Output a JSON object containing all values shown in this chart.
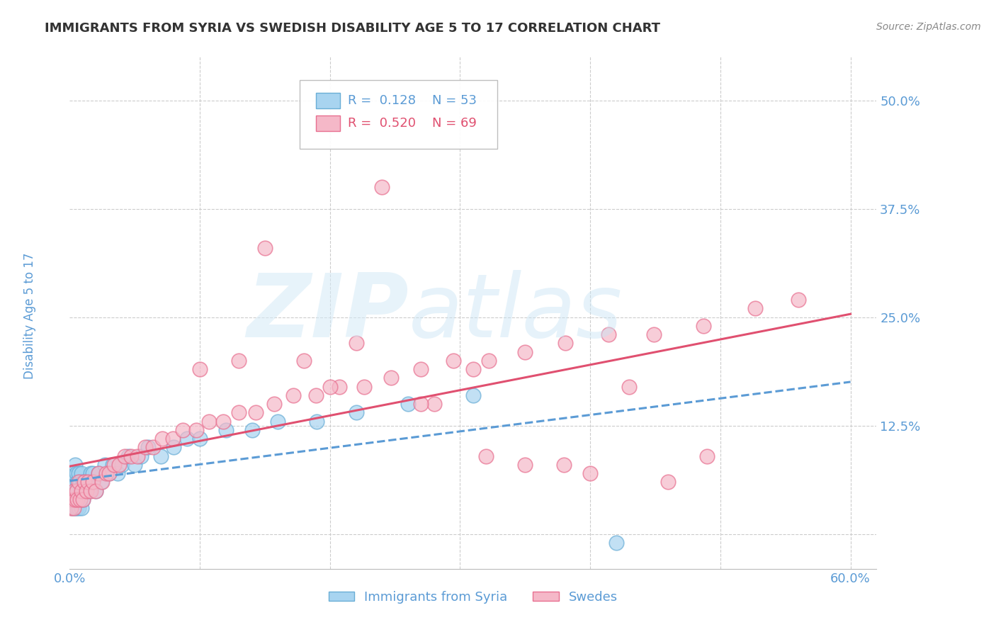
{
  "title": "IMMIGRANTS FROM SYRIA VS SWEDISH DISABILITY AGE 5 TO 17 CORRELATION CHART",
  "source": "Source: ZipAtlas.com",
  "xlabel": "",
  "ylabel": "Disability Age 5 to 17",
  "xlim": [
    0.0,
    0.62
  ],
  "ylim": [
    -0.04,
    0.55
  ],
  "xticks": [
    0.0,
    0.1,
    0.2,
    0.3,
    0.4,
    0.5,
    0.6
  ],
  "xticklabels": [
    "0.0%",
    "",
    "",
    "",
    "",
    "",
    "60.0%"
  ],
  "yticks": [
    0.0,
    0.125,
    0.25,
    0.375,
    0.5
  ],
  "yticklabels": [
    "",
    "12.5%",
    "25.0%",
    "37.5%",
    "50.0%"
  ],
  "legend_r_blue": "0.128",
  "legend_n_blue": "53",
  "legend_r_pink": "0.520",
  "legend_n_pink": "69",
  "blue_scatter_color": "#A8D4F0",
  "blue_edge_color": "#6AAED6",
  "pink_scatter_color": "#F5B8C8",
  "pink_edge_color": "#E87090",
  "blue_line_color": "#5B9BD5",
  "pink_line_color": "#E05070",
  "axis_label_color": "#5B9BD5",
  "grid_color": "#CCCCCC",
  "title_color": "#333333",
  "blue_scatter_x": [
    0.001,
    0.002,
    0.002,
    0.003,
    0.003,
    0.004,
    0.004,
    0.004,
    0.005,
    0.005,
    0.005,
    0.006,
    0.006,
    0.007,
    0.007,
    0.008,
    0.008,
    0.009,
    0.009,
    0.01,
    0.01,
    0.011,
    0.012,
    0.013,
    0.014,
    0.015,
    0.016,
    0.017,
    0.018,
    0.02,
    0.022,
    0.024,
    0.027,
    0.03,
    0.033,
    0.037,
    0.04,
    0.045,
    0.05,
    0.055,
    0.06,
    0.07,
    0.08,
    0.09,
    0.1,
    0.12,
    0.14,
    0.16,
    0.19,
    0.22,
    0.26,
    0.31,
    0.42
  ],
  "blue_scatter_y": [
    0.04,
    0.03,
    0.06,
    0.04,
    0.07,
    0.03,
    0.05,
    0.08,
    0.03,
    0.05,
    0.07,
    0.04,
    0.06,
    0.03,
    0.07,
    0.04,
    0.06,
    0.03,
    0.07,
    0.04,
    0.06,
    0.05,
    0.06,
    0.05,
    0.06,
    0.05,
    0.07,
    0.06,
    0.07,
    0.05,
    0.07,
    0.06,
    0.08,
    0.07,
    0.08,
    0.07,
    0.08,
    0.09,
    0.08,
    0.09,
    0.1,
    0.09,
    0.1,
    0.11,
    0.11,
    0.12,
    0.12,
    0.13,
    0.13,
    0.14,
    0.15,
    0.16,
    -0.01
  ],
  "pink_scatter_x": [
    0.001,
    0.002,
    0.003,
    0.003,
    0.004,
    0.005,
    0.006,
    0.007,
    0.008,
    0.009,
    0.01,
    0.011,
    0.013,
    0.014,
    0.016,
    0.018,
    0.02,
    0.022,
    0.025,
    0.028,
    0.03,
    0.034,
    0.038,
    0.042,
    0.047,
    0.052,
    0.058,
    0.064,
    0.071,
    0.079,
    0.087,
    0.097,
    0.107,
    0.118,
    0.13,
    0.143,
    0.157,
    0.172,
    0.189,
    0.207,
    0.226,
    0.247,
    0.27,
    0.295,
    0.322,
    0.35,
    0.381,
    0.414,
    0.449,
    0.487,
    0.527,
    0.2,
    0.15,
    0.28,
    0.32,
    0.24,
    0.18,
    0.35,
    0.4,
    0.46,
    0.1,
    0.22,
    0.27,
    0.13,
    0.31,
    0.38,
    0.43,
    0.49,
    0.56
  ],
  "pink_scatter_y": [
    0.03,
    0.04,
    0.03,
    0.05,
    0.04,
    0.05,
    0.04,
    0.06,
    0.04,
    0.05,
    0.04,
    0.06,
    0.05,
    0.06,
    0.05,
    0.06,
    0.05,
    0.07,
    0.06,
    0.07,
    0.07,
    0.08,
    0.08,
    0.09,
    0.09,
    0.09,
    0.1,
    0.1,
    0.11,
    0.11,
    0.12,
    0.12,
    0.13,
    0.13,
    0.14,
    0.14,
    0.15,
    0.16,
    0.16,
    0.17,
    0.17,
    0.18,
    0.19,
    0.2,
    0.2,
    0.21,
    0.22,
    0.23,
    0.23,
    0.24,
    0.26,
    0.17,
    0.33,
    0.15,
    0.09,
    0.4,
    0.2,
    0.08,
    0.07,
    0.06,
    0.19,
    0.22,
    0.15,
    0.2,
    0.19,
    0.08,
    0.17,
    0.09,
    0.27
  ]
}
